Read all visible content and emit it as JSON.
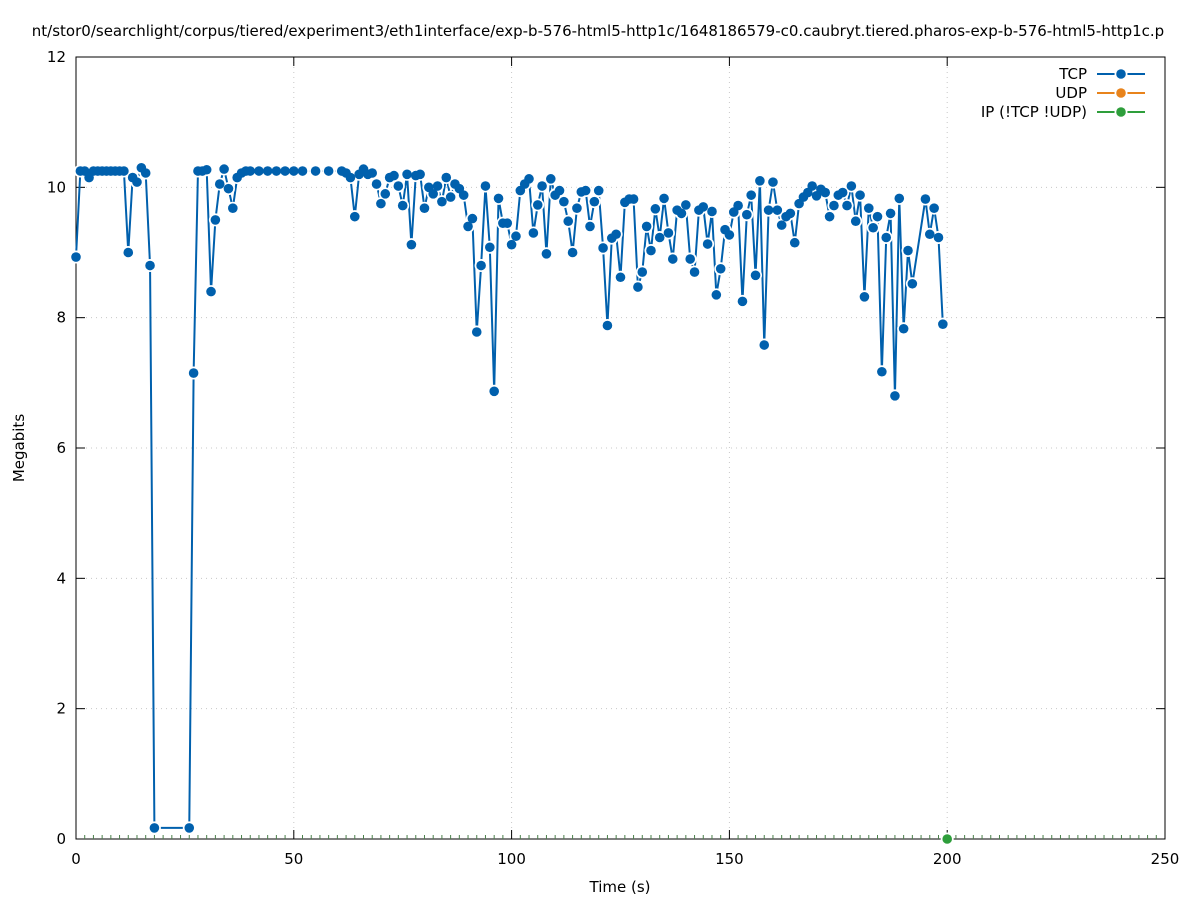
{
  "chart_data": {
    "type": "line",
    "title": "nt/stor0/searchlight/corpus/tiered/experiment3/eth1interface/exp-b-576-html5-http1c/1648186579-c0.caubryt.tiered.pharos-exp-b-576-html5-http1c.p",
    "xlabel": "Time (s)",
    "ylabel": "Megabits",
    "xlim": [
      0,
      250
    ],
    "ylim": [
      0,
      12
    ],
    "xticks": [
      0,
      50,
      100,
      150,
      200,
      250
    ],
    "yticks": [
      0,
      2,
      4,
      6,
      8,
      10,
      12
    ],
    "grid": true,
    "legend_position": "top-right",
    "series": [
      {
        "name": "TCP",
        "color": "#0060ad",
        "points": [
          [
            0,
            8.93
          ],
          [
            1,
            10.25
          ],
          [
            2,
            10.25
          ],
          [
            3,
            10.15
          ],
          [
            4,
            10.25
          ],
          [
            5,
            10.25
          ],
          [
            6,
            10.25
          ],
          [
            7,
            10.25
          ],
          [
            8,
            10.25
          ],
          [
            9,
            10.25
          ],
          [
            10,
            10.25
          ],
          [
            11,
            10.25
          ],
          [
            12,
            9.0
          ],
          [
            13,
            10.15
          ],
          [
            14,
            10.08
          ],
          [
            15,
            10.3
          ],
          [
            16,
            10.22
          ],
          [
            17,
            8.8
          ],
          [
            18,
            0.17
          ],
          [
            26,
            0.17
          ],
          [
            27,
            7.15
          ],
          [
            28,
            10.25
          ],
          [
            29,
            10.25
          ],
          [
            30,
            10.27
          ],
          [
            31,
            8.4
          ],
          [
            32,
            9.5
          ],
          [
            33,
            10.05
          ],
          [
            34,
            10.28
          ],
          [
            35,
            9.98
          ],
          [
            36,
            9.68
          ],
          [
            37,
            10.15
          ],
          [
            38,
            10.22
          ],
          [
            39,
            10.25
          ],
          [
            40,
            10.25
          ],
          [
            42,
            10.25
          ],
          [
            44,
            10.25
          ],
          [
            46,
            10.25
          ],
          [
            48,
            10.25
          ],
          [
            50,
            10.25
          ],
          [
            52,
            10.25
          ],
          [
            55,
            10.25
          ],
          [
            58,
            10.25
          ],
          [
            61,
            10.25
          ],
          [
            62,
            10.22
          ],
          [
            63,
            10.15
          ],
          [
            64,
            9.55
          ],
          [
            65,
            10.2
          ],
          [
            66,
            10.28
          ],
          [
            67,
            10.2
          ],
          [
            68,
            10.22
          ],
          [
            69,
            10.05
          ],
          [
            70,
            9.75
          ],
          [
            71,
            9.9
          ],
          [
            72,
            10.15
          ],
          [
            73,
            10.18
          ],
          [
            74,
            10.02
          ],
          [
            75,
            9.72
          ],
          [
            76,
            10.2
          ],
          [
            77,
            9.12
          ],
          [
            78,
            10.18
          ],
          [
            79,
            10.2
          ],
          [
            80,
            9.68
          ],
          [
            81,
            10.0
          ],
          [
            82,
            9.9
          ],
          [
            83,
            10.02
          ],
          [
            84,
            9.78
          ],
          [
            85,
            10.15
          ],
          [
            86,
            9.85
          ],
          [
            87,
            10.05
          ],
          [
            88,
            9.98
          ],
          [
            89,
            9.88
          ],
          [
            90,
            9.4
          ],
          [
            91,
            9.52
          ],
          [
            92,
            7.78
          ],
          [
            93,
            8.8
          ],
          [
            94,
            10.02
          ],
          [
            95,
            9.08
          ],
          [
            96,
            6.87
          ],
          [
            97,
            9.83
          ],
          [
            98,
            9.45
          ],
          [
            99,
            9.45
          ],
          [
            100,
            9.12
          ],
          [
            101,
            9.25
          ],
          [
            102,
            9.95
          ],
          [
            103,
            10.05
          ],
          [
            104,
            10.13
          ],
          [
            105,
            9.3
          ],
          [
            106,
            9.73
          ],
          [
            107,
            10.02
          ],
          [
            108,
            8.98
          ],
          [
            109,
            10.13
          ],
          [
            110,
            9.88
          ],
          [
            111,
            9.95
          ],
          [
            112,
            9.78
          ],
          [
            113,
            9.48
          ],
          [
            114,
            9.0
          ],
          [
            115,
            9.68
          ],
          [
            116,
            9.93
          ],
          [
            117,
            9.95
          ],
          [
            118,
            9.4
          ],
          [
            119,
            9.78
          ],
          [
            120,
            9.95
          ],
          [
            121,
            9.07
          ],
          [
            122,
            7.88
          ],
          [
            123,
            9.22
          ],
          [
            124,
            9.28
          ],
          [
            125,
            8.62
          ],
          [
            126,
            9.77
          ],
          [
            127,
            9.82
          ],
          [
            128,
            9.82
          ],
          [
            129,
            8.47
          ],
          [
            130,
            8.7
          ],
          [
            131,
            9.4
          ],
          [
            132,
            9.03
          ],
          [
            133,
            9.67
          ],
          [
            134,
            9.23
          ],
          [
            135,
            9.83
          ],
          [
            136,
            9.3
          ],
          [
            137,
            8.9
          ],
          [
            138,
            9.65
          ],
          [
            139,
            9.6
          ],
          [
            140,
            9.73
          ],
          [
            141,
            8.9
          ],
          [
            142,
            8.7
          ],
          [
            143,
            9.65
          ],
          [
            144,
            9.7
          ],
          [
            145,
            9.13
          ],
          [
            146,
            9.63
          ],
          [
            147,
            8.35
          ],
          [
            148,
            8.75
          ],
          [
            149,
            9.35
          ],
          [
            150,
            9.27
          ],
          [
            151,
            9.62
          ],
          [
            152,
            9.72
          ],
          [
            153,
            8.25
          ],
          [
            154,
            9.58
          ],
          [
            155,
            9.88
          ],
          [
            156,
            8.65
          ],
          [
            157,
            10.1
          ],
          [
            158,
            7.58
          ],
          [
            159,
            9.65
          ],
          [
            160,
            10.08
          ],
          [
            161,
            9.65
          ],
          [
            162,
            9.42
          ],
          [
            163,
            9.55
          ],
          [
            164,
            9.6
          ],
          [
            165,
            9.15
          ],
          [
            166,
            9.75
          ],
          [
            167,
            9.85
          ],
          [
            168,
            9.92
          ],
          [
            169,
            10.02
          ],
          [
            170,
            9.87
          ],
          [
            171,
            9.97
          ],
          [
            172,
            9.92
          ],
          [
            173,
            9.55
          ],
          [
            174,
            9.72
          ],
          [
            175,
            9.88
          ],
          [
            176,
            9.92
          ],
          [
            177,
            9.72
          ],
          [
            178,
            10.02
          ],
          [
            179,
            9.48
          ],
          [
            180,
            9.88
          ],
          [
            181,
            8.32
          ],
          [
            182,
            9.68
          ],
          [
            183,
            9.38
          ],
          [
            184,
            9.55
          ],
          [
            185,
            7.17
          ],
          [
            186,
            9.23
          ],
          [
            187,
            9.6
          ],
          [
            188,
            6.8
          ],
          [
            189,
            9.83
          ],
          [
            190,
            7.83
          ],
          [
            191,
            9.03
          ],
          [
            192,
            8.52
          ],
          [
            195,
            9.82
          ],
          [
            196,
            9.28
          ],
          [
            197,
            9.68
          ],
          [
            198,
            9.23
          ],
          [
            199,
            7.9
          ]
        ]
      },
      {
        "name": "UDP",
        "color": "#e8831b",
        "points": []
      },
      {
        "name": "IP (!TCP  !UDP)",
        "color": "#2e9e3b",
        "points": [
          [
            200,
            0
          ]
        ]
      }
    ]
  }
}
